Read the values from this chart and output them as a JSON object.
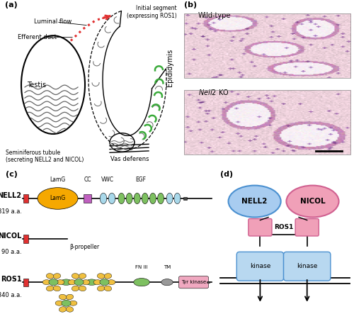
{
  "panel_a_label": "(a)",
  "panel_b_label": "(b)",
  "panel_c_label": "(c)",
  "panel_d_label": "(d)",
  "colors": {
    "red": "#e03030",
    "orange": "#f5a800",
    "green_egf": "#7dc060",
    "light_blue": "#a8d8ea",
    "purple": "#c060c0",
    "pink_tyr": "#f0a8c0",
    "gray": "#999999",
    "dark_gray": "#444444",
    "gold": "#f0c040",
    "flower_green": "#7dc060",
    "nell2_blue": "#a8ccf0",
    "nicol_pink": "#f0a0b8",
    "ros1_pink": "#f0a0b8",
    "kinase_blue": "#b8d8f0"
  }
}
